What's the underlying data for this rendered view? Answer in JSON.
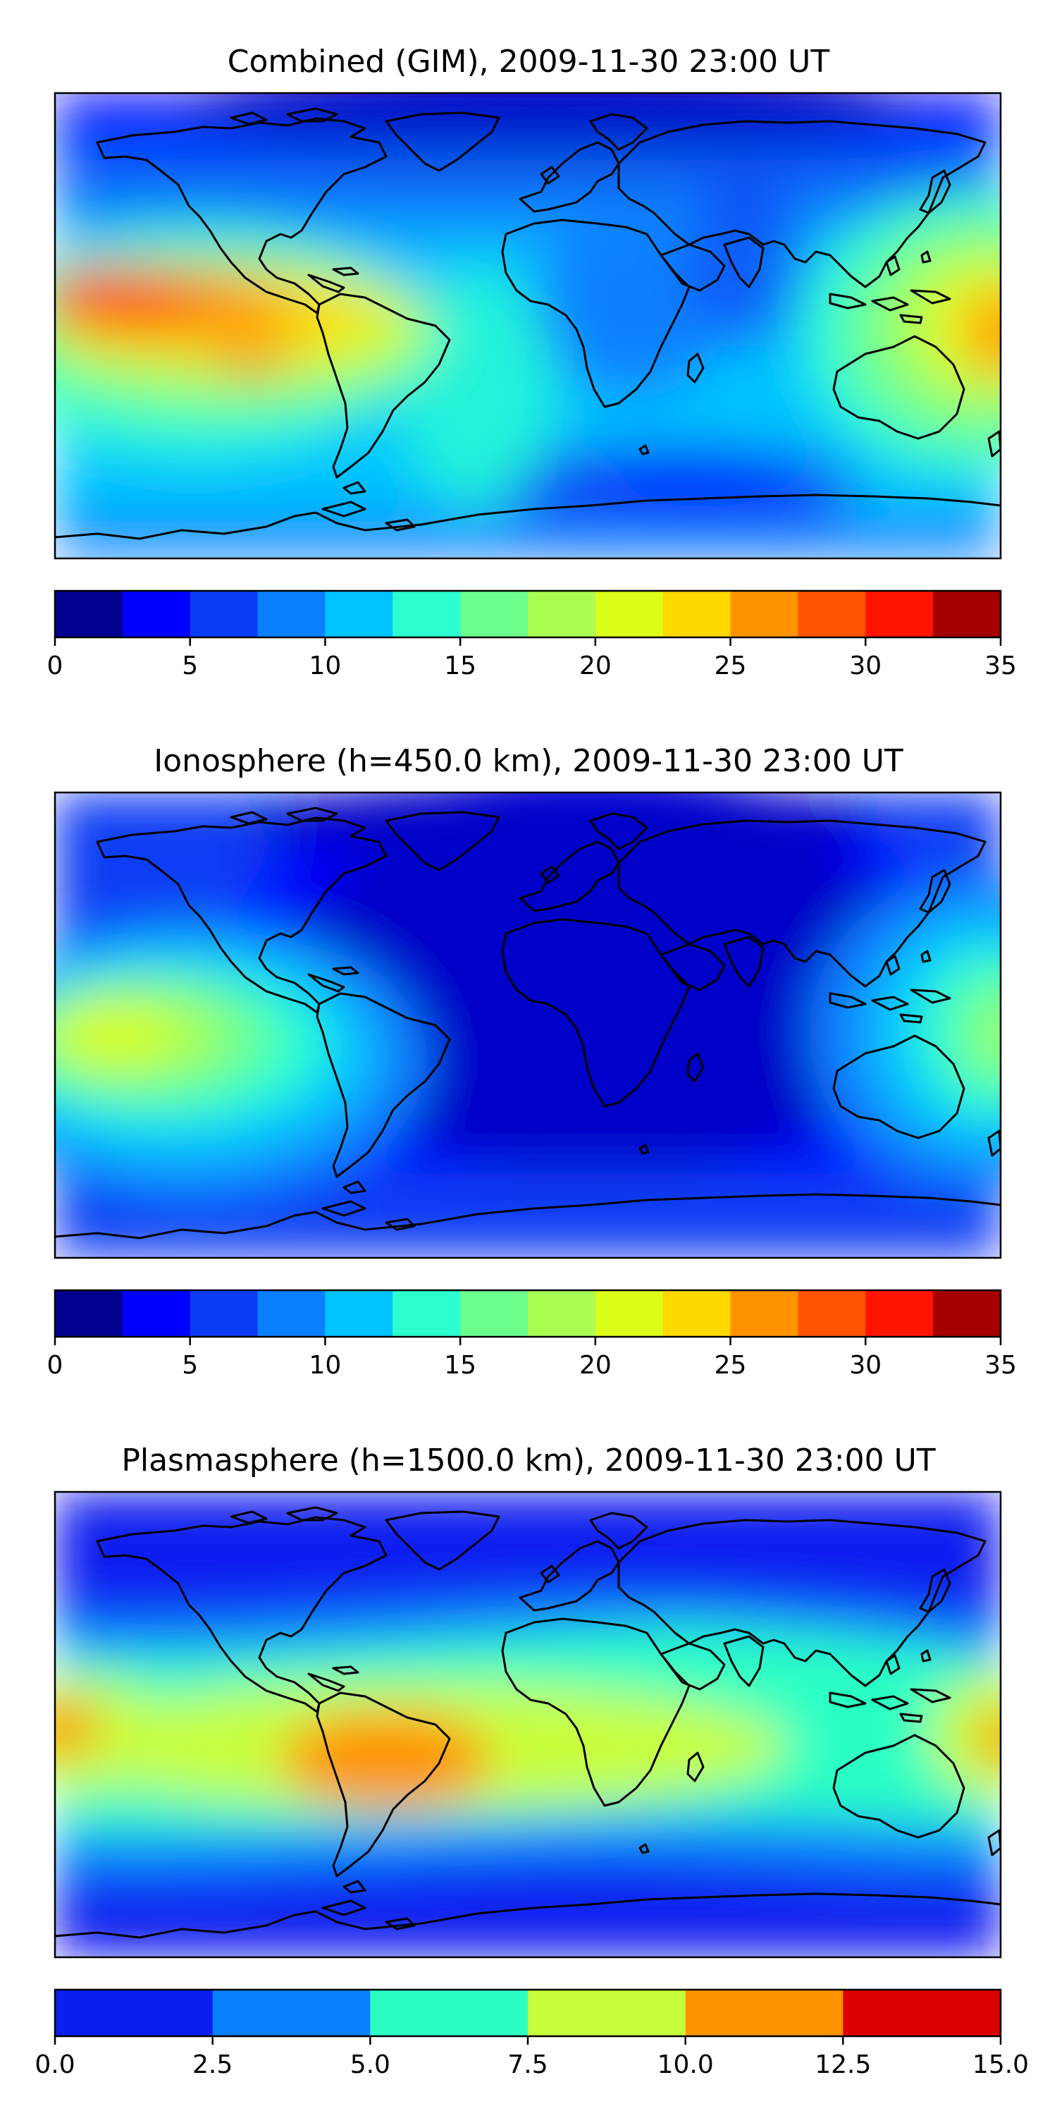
{
  "chart_data": [
    {
      "type": "heatmap",
      "title": "Combined (GIM), 2009-11-30 23:00 UT",
      "map": "world coastlines, equirectangular projection",
      "colorbar": {
        "bounds": [
          0,
          2.5,
          5,
          7.5,
          10,
          12.5,
          15,
          17.5,
          20,
          22.5,
          25,
          27.5,
          30,
          32.5,
          35
        ],
        "colors": [
          "#00008f",
          "#0000ff",
          "#0a3cf4",
          "#0a80ff",
          "#00c4ff",
          "#2cffd0",
          "#6cff8e",
          "#a8ff52",
          "#dcff1a",
          "#ffd800",
          "#ff9400",
          "#ff5400",
          "#ff1400",
          "#a50000"
        ],
        "tick_labels": [
          "0",
          "5",
          "10",
          "15",
          "20",
          "25",
          "30",
          "35"
        ],
        "range": [
          0,
          35
        ]
      }
    },
    {
      "type": "heatmap",
      "title": "Ionosphere  (h=450.0 km), 2009-11-30 23:00 UT",
      "map": "world coastlines, equirectangular projection",
      "colorbar": {
        "bounds": [
          0,
          2.5,
          5,
          7.5,
          10,
          12.5,
          15,
          17.5,
          20,
          22.5,
          25,
          27.5,
          30,
          32.5,
          35
        ],
        "colors": [
          "#00008f",
          "#0000ff",
          "#0a3cf4",
          "#0a80ff",
          "#00c4ff",
          "#2cffd0",
          "#6cff8e",
          "#a8ff52",
          "#dcff1a",
          "#ffd800",
          "#ff9400",
          "#ff5400",
          "#ff1400",
          "#a50000"
        ],
        "tick_labels": [
          "0",
          "5",
          "10",
          "15",
          "20",
          "25",
          "30",
          "35"
        ],
        "range": [
          0,
          35
        ]
      }
    },
    {
      "type": "heatmap",
      "title": "Plasmasphere (h=1500.0 km), 2009-11-30 23:00 UT",
      "map": "world coastlines, equirectangular projection",
      "colorbar": {
        "bounds": [
          0,
          2.5,
          5,
          7.5,
          10,
          12.5,
          15
        ],
        "colors": [
          "#0a1ef0",
          "#0a80ff",
          "#2cffc4",
          "#c8ff3c",
          "#ff9400",
          "#dc0000"
        ],
        "tick_labels": [
          "0.0",
          "2.5",
          "5.0",
          "7.5",
          "10.0",
          "12.5",
          "15.0"
        ],
        "range": [
          0,
          15
        ]
      }
    }
  ]
}
